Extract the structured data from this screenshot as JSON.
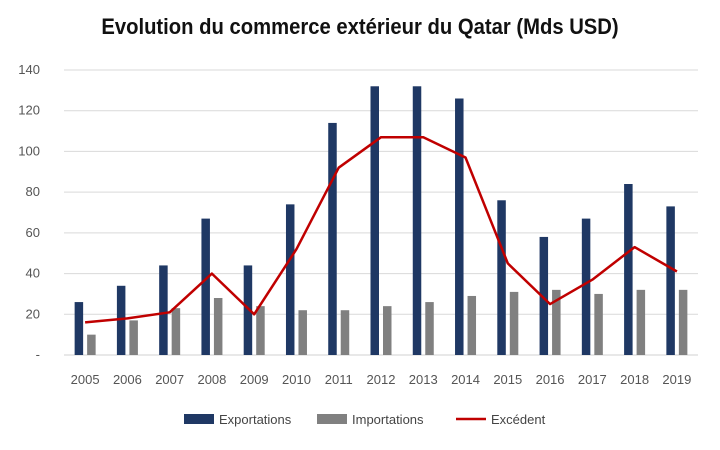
{
  "chart_data": {
    "type": "bar",
    "title": "Evolution du commerce extérieur du Qatar (Mds USD)",
    "xlabel": "",
    "ylabel": "",
    "categories": [
      "2005",
      "2006",
      "2007",
      "2008",
      "2009",
      "2010",
      "2011",
      "2012",
      "2013",
      "2014",
      "2015",
      "2016",
      "2017",
      "2018",
      "2019"
    ],
    "ylim": [
      0,
      140
    ],
    "yticks": [
      0,
      20,
      40,
      60,
      80,
      100,
      120,
      140
    ],
    "ytick_labels": [
      "-",
      "20",
      "40",
      "60",
      "80",
      "100",
      "120",
      "140"
    ],
    "grid": true,
    "legend_position": "bottom",
    "series": [
      {
        "name": "Exportations",
        "kind": "bar",
        "color": "#1f3864",
        "values": [
          26,
          34,
          44,
          67,
          44,
          74,
          114,
          132,
          132,
          126,
          76,
          58,
          67,
          84,
          73
        ]
      },
      {
        "name": "Importations",
        "kind": "bar",
        "color": "#808080",
        "values": [
          10,
          17,
          23,
          28,
          24,
          22,
          22,
          24,
          26,
          29,
          31,
          32,
          30,
          32,
          32
        ]
      },
      {
        "name": "Excédent",
        "kind": "line",
        "color": "#c00000",
        "values": [
          16,
          18,
          21,
          40,
          20,
          52,
          92,
          107,
          107,
          97,
          45,
          25,
          37,
          53,
          41
        ]
      }
    ]
  }
}
